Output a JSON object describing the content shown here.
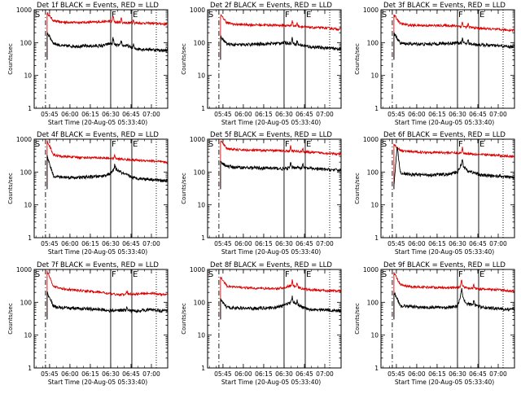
{
  "colors": {
    "events": "#000000",
    "lld": "#dd0000",
    "axis": "#000000"
  },
  "panel_common": {
    "ylabel": "Counts/sec",
    "xlabel": "Start Time (20-Aug-05 05:33:40)",
    "xlim": [
      "05:33:40",
      "07:12:00"
    ],
    "ylim": [
      1,
      1000
    ],
    "yscale": "log",
    "x_tick_labels": [
      "05:45",
      "06:00",
      "06:15",
      "06:30",
      "06:45",
      "07:00"
    ],
    "y_tick_labels": [
      "1",
      "10",
      "100",
      "1000"
    ],
    "marker_S": "S",
    "marker_F": "F",
    "marker_E": "E"
  },
  "chart_data": [
    {
      "type": "line",
      "title": "Det 1f BLACK = Events, RED = LLD",
      "x_start": "05:33:40",
      "x_end": "07:12:00",
      "events_anchor": [
        [
          5.72,
          200
        ],
        [
          5.8,
          95
        ],
        [
          5.9,
          80
        ],
        [
          6.1,
          78
        ],
        [
          6.4,
          80
        ],
        [
          6.5,
          95
        ],
        [
          6.55,
          85
        ],
        [
          6.7,
          80
        ],
        [
          6.8,
          65
        ],
        [
          7.0,
          62
        ],
        [
          7.15,
          58
        ]
      ],
      "lld_anchor": [
        [
          5.72,
          800
        ],
        [
          5.8,
          460
        ],
        [
          5.9,
          420
        ],
        [
          6.1,
          410
        ],
        [
          6.3,
          420
        ],
        [
          6.5,
          450
        ],
        [
          6.55,
          420
        ],
        [
          6.7,
          400
        ],
        [
          7.0,
          390
        ],
        [
          7.15,
          370
        ]
      ],
      "spikes": [
        [
          6.53,
          1.6
        ],
        [
          6.63,
          1.4
        ],
        [
          6.78,
          1.3
        ]
      ],
      "lines": {
        "S": 5.7,
        "F": 6.5,
        "E": 6.76,
        "dotted": 7.06
      }
    },
    {
      "type": "line",
      "title": "Det 2f BLACK = Events, RED = LLD",
      "x_start": "05:33:40",
      "x_end": "07:12:00",
      "events_anchor": [
        [
          5.72,
          150
        ],
        [
          5.8,
          90
        ],
        [
          5.9,
          85
        ],
        [
          6.1,
          88
        ],
        [
          6.4,
          95
        ],
        [
          6.5,
          100
        ],
        [
          6.6,
          95
        ],
        [
          6.8,
          75
        ],
        [
          7.0,
          70
        ],
        [
          7.15,
          65
        ]
      ],
      "lld_anchor": [
        [
          5.72,
          700
        ],
        [
          5.8,
          400
        ],
        [
          5.9,
          360
        ],
        [
          6.1,
          350
        ],
        [
          6.4,
          340
        ],
        [
          6.5,
          330
        ],
        [
          6.6,
          330
        ],
        [
          6.8,
          290
        ],
        [
          7.0,
          280
        ],
        [
          7.15,
          260
        ]
      ],
      "spikes": [
        [
          6.6,
          1.5
        ],
        [
          6.66,
          1.3
        ]
      ],
      "lines": {
        "S": 5.7,
        "F": 6.5,
        "E": 6.76,
        "dotted": 7.06
      }
    },
    {
      "type": "line",
      "title": "Det 3f BLACK = Events, RED = LLD",
      "x_start": "05:33:40",
      "x_end": "07:12:00",
      "events_anchor": [
        [
          5.72,
          200
        ],
        [
          5.8,
          95
        ],
        [
          5.9,
          92
        ],
        [
          6.1,
          90
        ],
        [
          6.4,
          95
        ],
        [
          6.5,
          100
        ],
        [
          6.6,
          95
        ],
        [
          6.8,
          85
        ],
        [
          7.0,
          80
        ],
        [
          7.15,
          75
        ]
      ],
      "lld_anchor": [
        [
          5.72,
          700
        ],
        [
          5.8,
          380
        ],
        [
          5.9,
          340
        ],
        [
          6.1,
          330
        ],
        [
          6.4,
          330
        ],
        [
          6.5,
          320
        ],
        [
          6.6,
          300
        ],
        [
          6.8,
          270
        ],
        [
          7.0,
          250
        ],
        [
          7.15,
          240
        ]
      ],
      "spikes": [
        [
          6.56,
          1.4
        ],
        [
          6.63,
          1.3
        ]
      ],
      "lines": {
        "S": 5.7,
        "F": 6.5,
        "E": 6.76,
        "dotted": 7.06
      }
    },
    {
      "type": "line",
      "title": "Det 4f BLACK = Events, RED = LLD",
      "x_start": "05:33:40",
      "x_end": "07:12:00",
      "events_anchor": [
        [
          5.72,
          300
        ],
        [
          5.8,
          75
        ],
        [
          5.9,
          70
        ],
        [
          6.1,
          68
        ],
        [
          6.4,
          75
        ],
        [
          6.5,
          90
        ],
        [
          6.55,
          130
        ],
        [
          6.65,
          90
        ],
        [
          6.8,
          65
        ],
        [
          7.0,
          60
        ],
        [
          7.15,
          55
        ]
      ],
      "lld_anchor": [
        [
          5.72,
          900
        ],
        [
          5.8,
          330
        ],
        [
          5.9,
          300
        ],
        [
          6.1,
          280
        ],
        [
          6.4,
          270
        ],
        [
          6.5,
          260
        ],
        [
          6.6,
          250
        ],
        [
          6.8,
          230
        ],
        [
          7.0,
          220
        ],
        [
          7.15,
          200
        ]
      ],
      "spikes": [
        [
          6.55,
          1.3
        ]
      ],
      "lines": {
        "S": 5.7,
        "F": 6.5,
        "E": 6.76,
        "dotted": 7.06
      }
    },
    {
      "type": "line",
      "title": "Det 5f BLACK = Events, RED = LLD",
      "x_start": "05:33:40",
      "x_end": "07:12:00",
      "events_anchor": [
        [
          5.72,
          200
        ],
        [
          5.8,
          150
        ],
        [
          5.9,
          140
        ],
        [
          6.1,
          135
        ],
        [
          6.4,
          130
        ],
        [
          6.5,
          125
        ],
        [
          6.6,
          140
        ],
        [
          6.8,
          130
        ],
        [
          7.0,
          120
        ],
        [
          7.15,
          115
        ]
      ],
      "lld_anchor": [
        [
          5.72,
          900
        ],
        [
          5.8,
          520
        ],
        [
          5.9,
          480
        ],
        [
          6.1,
          460
        ],
        [
          6.4,
          450
        ],
        [
          6.5,
          440
        ],
        [
          6.6,
          440
        ],
        [
          6.8,
          400
        ],
        [
          7.0,
          380
        ],
        [
          7.15,
          350
        ]
      ],
      "spikes": [
        [
          6.58,
          1.4
        ],
        [
          6.73,
          1.3
        ]
      ],
      "lines": {
        "S": 5.7,
        "F": 6.5,
        "E": 6.76,
        "dotted": 7.06
      }
    },
    {
      "type": "line",
      "title": "Det 6f BLACK = Events, RED = LLD",
      "x_start": "05:33:40",
      "x_end": "07:12:00",
      "events_anchor": [
        [
          5.72,
          40
        ],
        [
          5.76,
          600
        ],
        [
          5.8,
          95
        ],
        [
          5.9,
          85
        ],
        [
          6.1,
          82
        ],
        [
          6.4,
          85
        ],
        [
          6.5,
          100
        ],
        [
          6.55,
          180
        ],
        [
          6.62,
          110
        ],
        [
          6.8,
          80
        ],
        [
          7.0,
          75
        ],
        [
          7.15,
          70
        ]
      ],
      "lld_anchor": [
        [
          5.72,
          700
        ],
        [
          5.8,
          450
        ],
        [
          5.9,
          420
        ],
        [
          6.1,
          400
        ],
        [
          6.4,
          390
        ],
        [
          6.5,
          380
        ],
        [
          6.6,
          370
        ],
        [
          6.8,
          340
        ],
        [
          7.0,
          320
        ],
        [
          7.15,
          300
        ]
      ],
      "spikes": [
        [
          6.56,
          1.5
        ]
      ],
      "lines": {
        "S": 5.7,
        "F": 6.5,
        "E": 6.76,
        "dotted": 7.06
      }
    },
    {
      "type": "line",
      "title": "Det 7f BLACK = Events, RED = LLD",
      "x_start": "05:33:40",
      "x_end": "07:12:00",
      "events_anchor": [
        [
          5.72,
          200
        ],
        [
          5.8,
          75
        ],
        [
          5.9,
          68
        ],
        [
          6.1,
          65
        ],
        [
          6.4,
          60
        ],
        [
          6.5,
          55
        ],
        [
          6.6,
          58
        ],
        [
          6.8,
          55
        ],
        [
          7.0,
          60
        ],
        [
          7.15,
          55
        ]
      ],
      "lld_anchor": [
        [
          5.72,
          900
        ],
        [
          5.8,
          300
        ],
        [
          5.9,
          260
        ],
        [
          6.1,
          230
        ],
        [
          6.4,
          200
        ],
        [
          6.5,
          180
        ],
        [
          6.6,
          170
        ],
        [
          6.8,
          180
        ],
        [
          7.0,
          190
        ],
        [
          7.15,
          170
        ]
      ],
      "spikes": [
        [
          6.7,
          1.3
        ]
      ],
      "lines": {
        "S": 5.7,
        "F": 6.5,
        "E": 6.76,
        "dotted": 7.06
      }
    },
    {
      "type": "line",
      "title": "Det 8f BLACK = Events, RED = LLD",
      "x_start": "05:33:40",
      "x_end": "07:12:00",
      "events_anchor": [
        [
          5.72,
          120
        ],
        [
          5.8,
          70
        ],
        [
          5.9,
          68
        ],
        [
          6.1,
          65
        ],
        [
          6.4,
          70
        ],
        [
          6.5,
          80
        ],
        [
          6.6,
          110
        ],
        [
          6.7,
          75
        ],
        [
          6.8,
          60
        ],
        [
          7.0,
          60
        ],
        [
          7.15,
          55
        ]
      ],
      "lld_anchor": [
        [
          5.72,
          600
        ],
        [
          5.8,
          310
        ],
        [
          5.9,
          290
        ],
        [
          6.1,
          270
        ],
        [
          6.4,
          260
        ],
        [
          6.5,
          280
        ],
        [
          6.6,
          330
        ],
        [
          6.7,
          270
        ],
        [
          6.8,
          240
        ],
        [
          7.0,
          230
        ],
        [
          7.15,
          220
        ]
      ],
      "spikes": [
        [
          6.6,
          1.4
        ],
        [
          6.66,
          1.3
        ]
      ],
      "lines": {
        "S": 5.7,
        "F": 6.5,
        "E": 6.76,
        "dotted": 7.06
      }
    },
    {
      "type": "line",
      "title": "Det 9f BLACK = Events, RED = LLD",
      "x_start": "05:33:40",
      "x_end": "07:12:00",
      "events_anchor": [
        [
          5.72,
          200
        ],
        [
          5.8,
          80
        ],
        [
          5.9,
          75
        ],
        [
          6.1,
          70
        ],
        [
          6.4,
          70
        ],
        [
          6.5,
          75
        ],
        [
          6.55,
          200
        ],
        [
          6.6,
          90
        ],
        [
          6.7,
          85
        ],
        [
          6.8,
          70
        ],
        [
          7.0,
          65
        ],
        [
          7.15,
          60
        ]
      ],
      "lld_anchor": [
        [
          5.72,
          800
        ],
        [
          5.8,
          340
        ],
        [
          5.9,
          300
        ],
        [
          6.1,
          290
        ],
        [
          6.4,
          280
        ],
        [
          6.5,
          280
        ],
        [
          6.55,
          330
        ],
        [
          6.6,
          280
        ],
        [
          6.8,
          250
        ],
        [
          7.0,
          240
        ],
        [
          7.15,
          220
        ]
      ],
      "spikes": [
        [
          6.55,
          1.4
        ],
        [
          6.7,
          1.3
        ]
      ],
      "lines": {
        "S": 5.7,
        "F": 6.5,
        "E": 6.76,
        "dotted": 7.06
      }
    }
  ]
}
